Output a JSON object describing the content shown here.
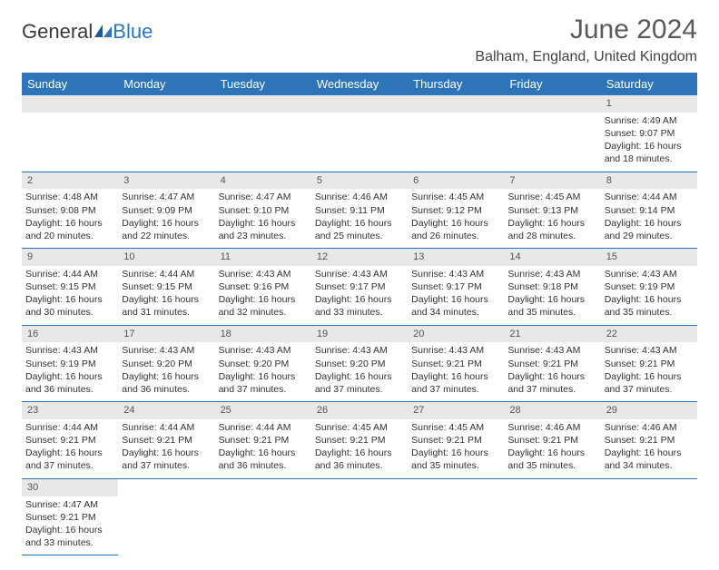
{
  "logo": {
    "text1": "General",
    "text2": "Blue"
  },
  "title": "June 2024",
  "location": "Balham, England, United Kingdom",
  "colors": {
    "header_bg": "#2d74b8",
    "header_text": "#ffffff",
    "daynum_bg": "#e8e8e8",
    "border": "#2d74b8"
  },
  "dayHeaders": [
    "Sunday",
    "Monday",
    "Tuesday",
    "Wednesday",
    "Thursday",
    "Friday",
    "Saturday"
  ],
  "weeks": [
    {
      "nums": [
        "",
        "",
        "",
        "",
        "",
        "",
        "1"
      ],
      "cells": [
        "",
        "",
        "",
        "",
        "",
        "",
        "Sunrise: 4:49 AM\nSunset: 9:07 PM\nDaylight: 16 hours and 18 minutes."
      ]
    },
    {
      "nums": [
        "2",
        "3",
        "4",
        "5",
        "6",
        "7",
        "8"
      ],
      "cells": [
        "Sunrise: 4:48 AM\nSunset: 9:08 PM\nDaylight: 16 hours and 20 minutes.",
        "Sunrise: 4:47 AM\nSunset: 9:09 PM\nDaylight: 16 hours and 22 minutes.",
        "Sunrise: 4:47 AM\nSunset: 9:10 PM\nDaylight: 16 hours and 23 minutes.",
        "Sunrise: 4:46 AM\nSunset: 9:11 PM\nDaylight: 16 hours and 25 minutes.",
        "Sunrise: 4:45 AM\nSunset: 9:12 PM\nDaylight: 16 hours and 26 minutes.",
        "Sunrise: 4:45 AM\nSunset: 9:13 PM\nDaylight: 16 hours and 28 minutes.",
        "Sunrise: 4:44 AM\nSunset: 9:14 PM\nDaylight: 16 hours and 29 minutes."
      ]
    },
    {
      "nums": [
        "9",
        "10",
        "11",
        "12",
        "13",
        "14",
        "15"
      ],
      "cells": [
        "Sunrise: 4:44 AM\nSunset: 9:15 PM\nDaylight: 16 hours and 30 minutes.",
        "Sunrise: 4:44 AM\nSunset: 9:15 PM\nDaylight: 16 hours and 31 minutes.",
        "Sunrise: 4:43 AM\nSunset: 9:16 PM\nDaylight: 16 hours and 32 minutes.",
        "Sunrise: 4:43 AM\nSunset: 9:17 PM\nDaylight: 16 hours and 33 minutes.",
        "Sunrise: 4:43 AM\nSunset: 9:17 PM\nDaylight: 16 hours and 34 minutes.",
        "Sunrise: 4:43 AM\nSunset: 9:18 PM\nDaylight: 16 hours and 35 minutes.",
        "Sunrise: 4:43 AM\nSunset: 9:19 PM\nDaylight: 16 hours and 35 minutes."
      ]
    },
    {
      "nums": [
        "16",
        "17",
        "18",
        "19",
        "20",
        "21",
        "22"
      ],
      "cells": [
        "Sunrise: 4:43 AM\nSunset: 9:19 PM\nDaylight: 16 hours and 36 minutes.",
        "Sunrise: 4:43 AM\nSunset: 9:20 PM\nDaylight: 16 hours and 36 minutes.",
        "Sunrise: 4:43 AM\nSunset: 9:20 PM\nDaylight: 16 hours and 37 minutes.",
        "Sunrise: 4:43 AM\nSunset: 9:20 PM\nDaylight: 16 hours and 37 minutes.",
        "Sunrise: 4:43 AM\nSunset: 9:21 PM\nDaylight: 16 hours and 37 minutes.",
        "Sunrise: 4:43 AM\nSunset: 9:21 PM\nDaylight: 16 hours and 37 minutes.",
        "Sunrise: 4:43 AM\nSunset: 9:21 PM\nDaylight: 16 hours and 37 minutes."
      ]
    },
    {
      "nums": [
        "23",
        "24",
        "25",
        "26",
        "27",
        "28",
        "29"
      ],
      "cells": [
        "Sunrise: 4:44 AM\nSunset: 9:21 PM\nDaylight: 16 hours and 37 minutes.",
        "Sunrise: 4:44 AM\nSunset: 9:21 PM\nDaylight: 16 hours and 37 minutes.",
        "Sunrise: 4:44 AM\nSunset: 9:21 PM\nDaylight: 16 hours and 36 minutes.",
        "Sunrise: 4:45 AM\nSunset: 9:21 PM\nDaylight: 16 hours and 36 minutes.",
        "Sunrise: 4:45 AM\nSunset: 9:21 PM\nDaylight: 16 hours and 35 minutes.",
        "Sunrise: 4:46 AM\nSunset: 9:21 PM\nDaylight: 16 hours and 35 minutes.",
        "Sunrise: 4:46 AM\nSunset: 9:21 PM\nDaylight: 16 hours and 34 minutes."
      ]
    },
    {
      "nums": [
        "30",
        "",
        "",
        "",
        "",
        "",
        ""
      ],
      "cells": [
        "Sunrise: 4:47 AM\nSunset: 9:21 PM\nDaylight: 16 hours and 33 minutes.",
        "",
        "",
        "",
        "",
        "",
        ""
      ]
    }
  ]
}
